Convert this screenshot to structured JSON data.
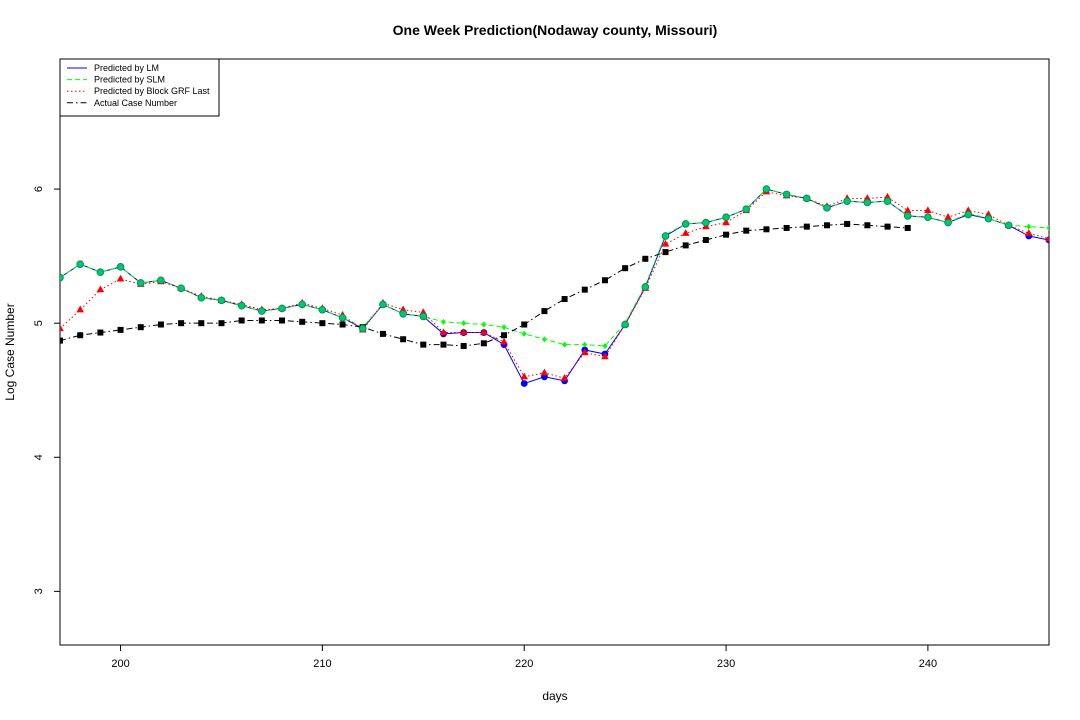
{
  "chart_data": {
    "type": "line",
    "title": "One Week Prediction(Nodaway county, Missouri)",
    "xlabel": "days",
    "ylabel": "Log Case Number",
    "xlim": [
      197,
      246
    ],
    "ylim": [
      2.6,
      6.97
    ],
    "x_ticks": [
      "200",
      "210",
      "220",
      "230",
      "240"
    ],
    "y_ticks": [
      "3",
      "4",
      "5",
      "6"
    ],
    "grid": false,
    "legend_position": "top-left",
    "x": [
      197,
      198,
      199,
      200,
      201,
      202,
      203,
      204,
      205,
      206,
      207,
      208,
      209,
      210,
      211,
      212,
      213,
      214,
      215,
      216,
      217,
      218,
      219,
      220,
      221,
      222,
      223,
      224,
      225,
      226,
      227,
      228,
      229,
      230,
      231,
      232,
      233,
      234,
      235,
      236,
      237,
      238,
      239,
      240,
      241,
      242,
      243,
      244,
      245,
      246
    ],
    "series": [
      {
        "name": "Predicted by LM",
        "color": "#0000ff",
        "line": "solid",
        "marker": "circle",
        "values": [
          5.34,
          5.44,
          5.38,
          5.42,
          5.3,
          5.32,
          5.26,
          5.19,
          5.17,
          5.13,
          5.09,
          5.11,
          5.14,
          5.1,
          5.04,
          4.96,
          5.14,
          5.07,
          5.05,
          4.92,
          4.93,
          4.93,
          4.84,
          4.55,
          4.6,
          4.57,
          4.8,
          4.77,
          4.99,
          5.27,
          5.65,
          5.74,
          5.75,
          5.79,
          5.85,
          6.0,
          5.96,
          5.93,
          5.86,
          5.91,
          5.9,
          5.91,
          5.8,
          5.79,
          5.75,
          5.81,
          5.78,
          5.73,
          5.65,
          5.62
        ]
      },
      {
        "name": "Predicted by SLM",
        "color": "#00ff00",
        "line": "dashed",
        "marker": "diamond",
        "values": [
          5.34,
          5.44,
          5.38,
          5.42,
          5.3,
          5.32,
          5.26,
          5.19,
          5.17,
          5.13,
          5.09,
          5.11,
          5.14,
          5.1,
          5.04,
          4.97,
          5.14,
          5.07,
          5.05,
          5.01,
          5.0,
          4.99,
          4.97,
          4.92,
          4.88,
          4.84,
          4.84,
          4.83,
          5.0,
          5.28,
          5.66,
          5.74,
          5.75,
          5.79,
          5.85,
          6.0,
          5.96,
          5.93,
          5.86,
          5.91,
          5.9,
          5.91,
          5.8,
          5.79,
          5.75,
          5.82,
          5.78,
          5.73,
          5.72,
          5.71
        ]
      },
      {
        "name": "Predicted by Block GRF Last",
        "color": "#ff0000",
        "line": "dotted",
        "marker": "triangle",
        "values": [
          4.96,
          5.1,
          5.25,
          5.33,
          5.29,
          5.31,
          5.26,
          5.2,
          5.17,
          5.14,
          5.1,
          5.11,
          5.15,
          5.11,
          5.06,
          4.95,
          5.15,
          5.1,
          5.08,
          4.93,
          4.93,
          4.93,
          4.86,
          4.6,
          4.63,
          4.59,
          4.78,
          4.75,
          4.99,
          5.26,
          5.59,
          5.67,
          5.72,
          5.75,
          5.84,
          5.98,
          5.95,
          5.93,
          5.87,
          5.93,
          5.93,
          5.94,
          5.84,
          5.84,
          5.79,
          5.84,
          5.81,
          5.73,
          5.67,
          5.63
        ]
      },
      {
        "name": "Actual Case Number",
        "color": "#000000",
        "line": "dotdash",
        "marker": "square",
        "values": [
          4.87,
          4.91,
          4.93,
          4.95,
          4.97,
          4.99,
          5.0,
          5.0,
          5.0,
          5.02,
          5.02,
          5.02,
          5.01,
          5.0,
          4.99,
          4.97,
          4.92,
          4.88,
          4.84,
          4.84,
          4.83,
          4.85,
          4.91,
          4.99,
          5.09,
          5.18,
          5.25,
          5.32,
          5.41,
          5.48,
          5.53,
          5.58,
          5.62,
          5.66,
          5.69,
          5.7,
          5.71,
          5.72,
          5.73,
          5.74,
          5.73,
          5.72,
          5.71,
          null,
          null,
          null,
          null,
          null,
          null,
          null
        ]
      }
    ]
  }
}
